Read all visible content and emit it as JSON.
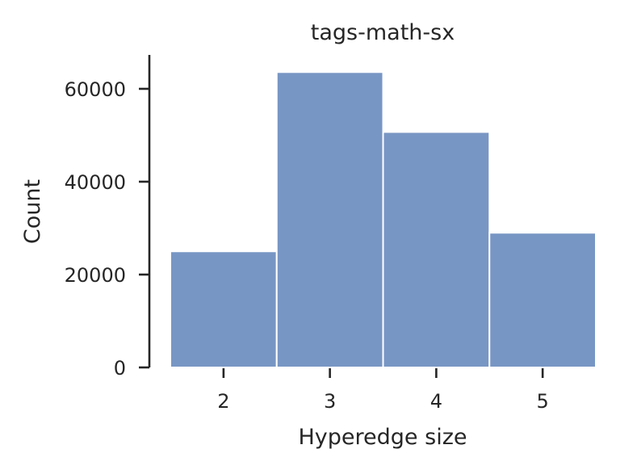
{
  "chart_data": {
    "type": "bar",
    "title": "tags-math-sx",
    "xlabel": "Hyperedge size",
    "ylabel": "Count",
    "categories": [
      "2",
      "3",
      "4",
      "5"
    ],
    "values": [
      25000,
      63600,
      50700,
      29000
    ],
    "ylim": [
      0,
      67300
    ],
    "yticks": [
      0,
      20000,
      40000,
      60000
    ],
    "yticklabels": [
      "0",
      "20000",
      "40000",
      "60000"
    ],
    "grid": false,
    "legend": "none",
    "bar_color": "#7896c4",
    "axis_color": "#262626"
  }
}
